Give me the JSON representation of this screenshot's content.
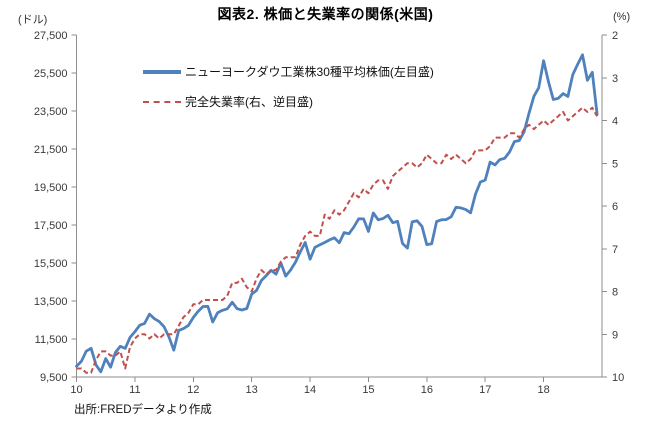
{
  "header": {
    "title": "図表2. 株価と失業率の関係(米国)"
  },
  "legend": {
    "items": [
      {
        "label": "ニューヨークダウ工業株30種平均株価(左目盛)",
        "color": "#4F81BD",
        "line_style": "solid"
      },
      {
        "label": "完全失業率(右、逆目盛)",
        "color": "#C0504D",
        "line_style": "dashed"
      }
    ]
  },
  "footer": {
    "source": "出所:FREDデータより作成"
  },
  "chart_data": {
    "type": "line",
    "title": "図表2. 株価と失業率の関係(米国)",
    "grid": false,
    "legend_position": "top-left-inside",
    "x_tick_labels": [
      "10",
      "11",
      "12",
      "13",
      "14",
      "15",
      "16",
      "17",
      "18"
    ],
    "left_axis": {
      "unit": "(ドル)",
      "min": 9500,
      "max": 27500,
      "tick_labels": [
        "27,500",
        "25,500",
        "23,500",
        "21,500",
        "19,500",
        "17,500",
        "15,500",
        "13,500",
        "11,500",
        "9,500"
      ]
    },
    "right_axis": {
      "unit": "(%)",
      "min": 2,
      "max": 10,
      "inverted": true,
      "tick_labels": [
        "2",
        "3",
        "4",
        "5",
        "6",
        "7",
        "8",
        "9",
        "10"
      ]
    },
    "series": [
      {
        "name": "ニューヨークダウ工業株30種平均株価(左目盛)",
        "axis": "left",
        "color": "#4F81BD",
        "line_style": "solid",
        "values": [
          10067,
          10325,
          10857,
          11009,
          10137,
          9774,
          10466,
          10015,
          10788,
          11118,
          11006,
          11578,
          11892,
          12226,
          12320,
          12811,
          12570,
          12414,
          12143,
          11614,
          10913,
          11955,
          12046,
          12218,
          12633,
          12952,
          13212,
          13214,
          12393,
          12880,
          13009,
          13091,
          13437,
          13096,
          13026,
          13104,
          13861,
          14054,
          14579,
          14840,
          15116,
          14910,
          15500,
          14810,
          15130,
          15546,
          16086,
          16577,
          15699,
          16322,
          16458,
          16581,
          16717,
          16827,
          16563,
          17098,
          17043,
          17391,
          17828,
          17823,
          17165,
          18133,
          17776,
          17841,
          18011,
          17620,
          17690,
          16528,
          16285,
          17664,
          17720,
          17425,
          16466,
          16517,
          17685,
          17774,
          17787,
          17930,
          18432,
          18401,
          18308,
          18142,
          19124,
          19763,
          19864,
          20812,
          20663,
          20941,
          21009,
          21350,
          21891,
          21948,
          22405,
          23377,
          24272,
          24719,
          26149,
          25029,
          24103,
          24163,
          24416,
          24271,
          25415,
          25965,
          26458,
          25116,
          25538,
          23327
        ]
      },
      {
        "name": "完全失業率(右、逆目盛)",
        "axis": "right",
        "color": "#C0504D",
        "line_style": "dashed",
        "values": [
          9.8,
          9.8,
          9.9,
          9.9,
          9.6,
          9.4,
          9.4,
          9.5,
          9.5,
          9.4,
          9.8,
          9.3,
          9.1,
          9.0,
          9.0,
          9.1,
          9.0,
          9.1,
          9.0,
          9.0,
          9.0,
          8.8,
          8.6,
          8.5,
          8.3,
          8.3,
          8.2,
          8.2,
          8.2,
          8.2,
          8.2,
          8.1,
          7.8,
          7.8,
          7.7,
          7.9,
          8.0,
          7.7,
          7.5,
          7.6,
          7.5,
          7.5,
          7.3,
          7.2,
          7.2,
          7.2,
          6.9,
          6.7,
          6.6,
          6.7,
          6.7,
          6.2,
          6.3,
          6.1,
          6.2,
          6.1,
          5.9,
          5.7,
          5.8,
          5.6,
          5.7,
          5.5,
          5.4,
          5.4,
          5.6,
          5.3,
          5.2,
          5.1,
          5.0,
          5.0,
          5.1,
          5.0,
          4.8,
          4.9,
          5.0,
          5.0,
          4.8,
          4.9,
          4.8,
          4.9,
          5.0,
          4.9,
          4.7,
          4.7,
          4.7,
          4.6,
          4.4,
          4.4,
          4.4,
          4.3,
          4.3,
          4.4,
          4.2,
          4.1,
          4.2,
          4.1,
          4.0,
          4.1,
          4.0,
          3.9,
          3.8,
          4.0,
          3.9,
          3.8,
          3.7,
          3.8,
          3.7,
          3.9
        ]
      }
    ],
    "source": "出所:FREDデータより作成"
  }
}
